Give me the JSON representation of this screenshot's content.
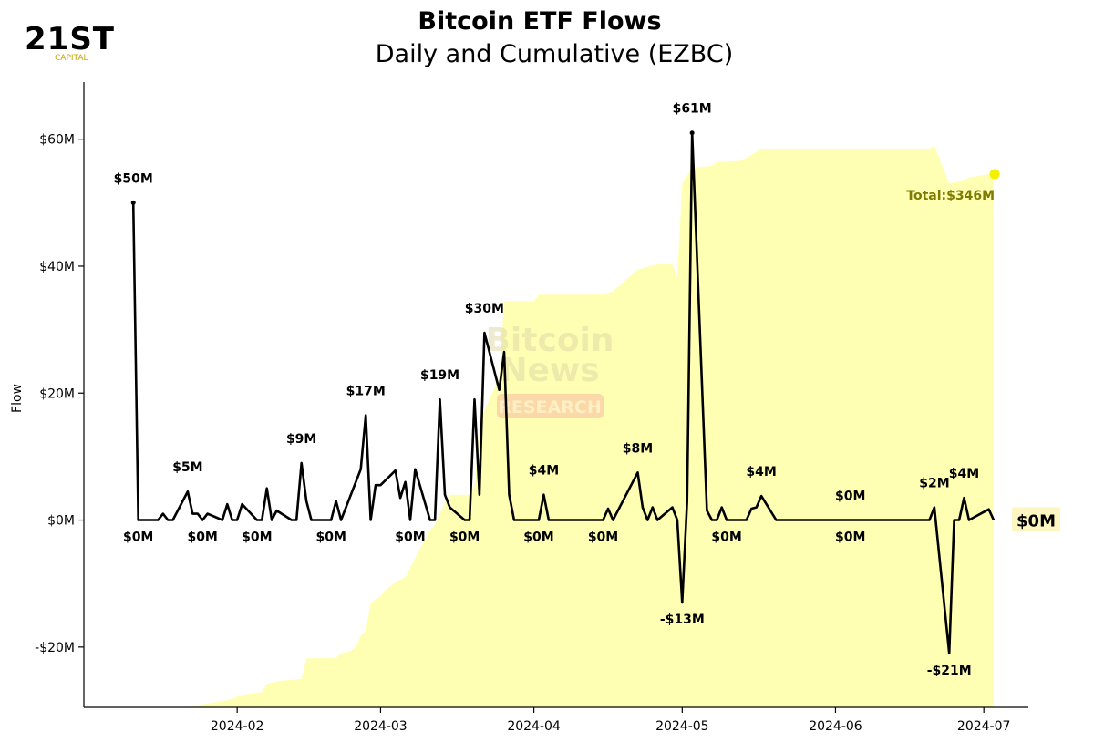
{
  "logo": {
    "main": "21ST",
    "sub": "CAPITAL"
  },
  "watermark": {
    "line1": "Bitcoin",
    "line2": "News",
    "line3": "RESEARCH"
  },
  "colors": {
    "line": "#000000",
    "area": "#ffffb3",
    "total_dot": "#f5ef00",
    "total_text": "#7f7a00",
    "last_badge": "#fdf6c0",
    "grid_zero": "#bbbbbb"
  },
  "chart_data": {
    "type": "line",
    "title": "Bitcoin ETF Flows",
    "subtitle": "Daily and Cumulative (EZBC)",
    "ylabel": "Flow",
    "xlabel": "",
    "ylim": [
      -29.5,
      69
    ],
    "yticks": [
      {
        "value": -20,
        "label": "-$20M"
      },
      {
        "value": 0,
        "label": "$0M"
      },
      {
        "value": 20,
        "label": "$20M"
      },
      {
        "value": 40,
        "label": "$40M"
      },
      {
        "value": 60,
        "label": "$60M"
      }
    ],
    "xlim": [
      "2024-01-01",
      "2024-07-10"
    ],
    "xticks": [
      "2024-02",
      "2024-03",
      "2024-04",
      "2024-05",
      "2024-06",
      "2024-07"
    ],
    "daily_flow_series": {
      "name": "Daily flow ($M)",
      "points": [
        [
          "2024-01-11",
          50
        ],
        [
          "2024-01-12",
          0
        ],
        [
          "2024-01-16",
          0
        ],
        [
          "2024-01-17",
          1
        ],
        [
          "2024-01-18",
          0
        ],
        [
          "2024-01-19",
          0
        ],
        [
          "2024-01-22",
          4.5
        ],
        [
          "2024-01-23",
          1
        ],
        [
          "2024-01-24",
          1
        ],
        [
          "2024-01-25",
          0
        ],
        [
          "2024-01-26",
          1
        ],
        [
          "2024-01-29",
          0
        ],
        [
          "2024-01-30",
          2.5
        ],
        [
          "2024-01-31",
          0
        ],
        [
          "2024-02-01",
          0
        ],
        [
          "2024-02-02",
          2.5
        ],
        [
          "2024-02-05",
          0
        ],
        [
          "2024-02-06",
          0
        ],
        [
          "2024-02-07",
          5
        ],
        [
          "2024-02-08",
          0
        ],
        [
          "2024-02-09",
          1.5
        ],
        [
          "2024-02-12",
          0
        ],
        [
          "2024-02-13",
          0
        ],
        [
          "2024-02-14",
          9
        ],
        [
          "2024-02-15",
          3
        ],
        [
          "2024-02-16",
          0
        ],
        [
          "2024-02-20",
          0
        ],
        [
          "2024-02-21",
          3
        ],
        [
          "2024-02-22",
          0
        ],
        [
          "2024-02-26",
          8
        ],
        [
          "2024-02-27",
          16.5
        ],
        [
          "2024-02-28",
          0
        ],
        [
          "2024-02-29",
          5.5
        ],
        [
          "2024-03-01",
          5.5
        ],
        [
          "2024-03-04",
          7.8
        ],
        [
          "2024-03-05",
          3.5
        ],
        [
          "2024-03-06",
          6
        ],
        [
          "2024-03-07",
          0
        ],
        [
          "2024-03-08",
          8
        ],
        [
          "2024-03-11",
          0
        ],
        [
          "2024-03-12",
          0
        ],
        [
          "2024-03-13",
          19
        ],
        [
          "2024-03-14",
          4
        ],
        [
          "2024-03-15",
          2
        ],
        [
          "2024-03-18",
          0
        ],
        [
          "2024-03-19",
          0
        ],
        [
          "2024-03-20",
          19
        ],
        [
          "2024-03-21",
          4
        ],
        [
          "2024-03-22",
          29.5
        ],
        [
          "2024-03-25",
          20.5
        ],
        [
          "2024-03-26",
          26.5
        ],
        [
          "2024-03-27",
          4
        ],
        [
          "2024-03-28",
          0
        ],
        [
          "2024-04-01",
          0
        ],
        [
          "2024-04-02",
          0
        ],
        [
          "2024-04-03",
          4
        ],
        [
          "2024-04-04",
          0
        ],
        [
          "2024-04-15",
          0
        ],
        [
          "2024-04-16",
          1.8
        ],
        [
          "2024-04-17",
          0
        ],
        [
          "2024-04-22",
          7.5
        ],
        [
          "2024-04-23",
          2
        ],
        [
          "2024-04-24",
          0
        ],
        [
          "2024-04-25",
          2
        ],
        [
          "2024-04-26",
          0
        ],
        [
          "2024-04-29",
          2
        ],
        [
          "2024-04-30",
          0
        ],
        [
          "2024-05-01",
          -13
        ],
        [
          "2024-05-02",
          3
        ],
        [
          "2024-05-03",
          61
        ],
        [
          "2024-05-06",
          1.5
        ],
        [
          "2024-05-07",
          0
        ],
        [
          "2024-05-08",
          0
        ],
        [
          "2024-05-09",
          2
        ],
        [
          "2024-05-10",
          0
        ],
        [
          "2024-05-13",
          0
        ],
        [
          "2024-05-14",
          0
        ],
        [
          "2024-05-15",
          1.8
        ],
        [
          "2024-05-16",
          2
        ],
        [
          "2024-05-17",
          3.8
        ],
        [
          "2024-05-20",
          0
        ],
        [
          "2024-06-20",
          0
        ],
        [
          "2024-06-21",
          2
        ],
        [
          "2024-06-24",
          -21
        ],
        [
          "2024-06-25",
          0
        ],
        [
          "2024-06-26",
          0
        ],
        [
          "2024-06-27",
          3.5
        ],
        [
          "2024-06-28",
          0
        ],
        [
          "2024-07-02",
          1.7
        ],
        [
          "2024-07-03",
          0
        ]
      ]
    },
    "cumulative_series": {
      "name": "Cumulative flow",
      "total_label": "Total:$346M",
      "points": [
        [
          "2024-01-11",
          -50
        ],
        [
          "2024-01-22",
          -29.5
        ],
        [
          "2024-01-25",
          -29
        ],
        [
          "2024-01-29",
          -28.5
        ],
        [
          "2024-01-31",
          -28.2
        ],
        [
          "2024-02-02",
          -27.5
        ],
        [
          "2024-02-06",
          -27.1
        ],
        [
          "2024-02-07",
          -25.8
        ],
        [
          "2024-02-09",
          -25.4
        ],
        [
          "2024-02-14",
          -25
        ],
        [
          "2024-02-15",
          -21.8
        ],
        [
          "2024-02-21",
          -21.7
        ],
        [
          "2024-02-22",
          -21
        ],
        [
          "2024-02-24",
          -20.6
        ],
        [
          "2024-02-25",
          -20
        ],
        [
          "2024-02-26",
          -18.2
        ],
        [
          "2024-02-27",
          -17.5
        ],
        [
          "2024-02-28",
          -13
        ],
        [
          "2024-03-01",
          -12
        ],
        [
          "2024-03-02",
          -11
        ],
        [
          "2024-03-04",
          -9.8
        ],
        [
          "2024-03-06",
          -9
        ],
        [
          "2024-03-07",
          -7.5
        ],
        [
          "2024-03-11",
          -1.5
        ],
        [
          "2024-03-12",
          -0.8
        ],
        [
          "2024-03-13",
          1
        ],
        [
          "2024-03-14",
          2.8
        ],
        [
          "2024-03-15",
          4
        ],
        [
          "2024-03-19",
          4
        ],
        [
          "2024-03-20",
          5.5
        ],
        [
          "2024-03-21",
          15.5
        ],
        [
          "2024-03-25",
          22.5
        ],
        [
          "2024-03-26",
          34.5
        ],
        [
          "2024-04-01",
          34.5
        ],
        [
          "2024-04-02",
          35.5
        ],
        [
          "2024-04-15",
          35.5
        ],
        [
          "2024-04-17",
          36
        ],
        [
          "2024-04-22",
          39.5
        ],
        [
          "2024-04-26",
          40.3
        ],
        [
          "2024-04-29",
          40.3
        ],
        [
          "2024-04-30",
          38.2
        ],
        [
          "2024-05-01",
          53
        ],
        [
          "2024-05-03",
          55.5
        ],
        [
          "2024-05-07",
          55.8
        ],
        [
          "2024-05-08",
          56.4
        ],
        [
          "2024-05-13",
          56.6
        ],
        [
          "2024-05-17",
          58.5
        ],
        [
          "2024-06-20",
          58.5
        ],
        [
          "2024-06-21",
          59
        ],
        [
          "2024-06-24",
          53
        ],
        [
          "2024-06-27",
          53.5
        ],
        [
          "2024-06-28",
          54
        ],
        [
          "2024-07-02",
          54.5
        ],
        [
          "2024-07-03",
          54.5
        ]
      ]
    },
    "point_labels": [
      {
        "date": "2024-01-11",
        "value": 50,
        "text": "$50M",
        "pos": "above"
      },
      {
        "date": "2024-01-22",
        "value": 4.5,
        "text": "$5M",
        "pos": "above"
      },
      {
        "date": "2024-02-14",
        "value": 9,
        "text": "$9M",
        "pos": "above"
      },
      {
        "date": "2024-02-27",
        "value": 16.5,
        "text": "$17M",
        "pos": "above"
      },
      {
        "date": "2024-03-13",
        "value": 19,
        "text": "$19M",
        "pos": "above"
      },
      {
        "date": "2024-03-22",
        "value": 29.5,
        "text": "$30M",
        "pos": "above"
      },
      {
        "date": "2024-04-03",
        "value": 4,
        "text": "$4M",
        "pos": "above"
      },
      {
        "date": "2024-04-22",
        "value": 7.5,
        "text": "$8M",
        "pos": "above"
      },
      {
        "date": "2024-05-03",
        "value": 61,
        "text": "$61M",
        "pos": "above"
      },
      {
        "date": "2024-05-17",
        "value": 3.8,
        "text": "$4M",
        "pos": "above"
      },
      {
        "date": "2024-06-04",
        "value": 0,
        "text": "$0M",
        "pos": "above"
      },
      {
        "date": "2024-06-21",
        "value": 2,
        "text": "$2M",
        "pos": "above"
      },
      {
        "date": "2024-06-27",
        "value": 3.5,
        "text": "$4M",
        "pos": "above"
      },
      {
        "date": "2024-05-01",
        "value": -13,
        "text": "-$13M",
        "pos": "below"
      },
      {
        "date": "2024-06-24",
        "value": -21,
        "text": "-$21M",
        "pos": "below"
      },
      {
        "date": "2024-01-12",
        "value": 0,
        "text": "$0M",
        "pos": "below"
      },
      {
        "date": "2024-01-25",
        "value": 0,
        "text": "$0M",
        "pos": "below"
      },
      {
        "date": "2024-02-05",
        "value": 0,
        "text": "$0M",
        "pos": "below"
      },
      {
        "date": "2024-02-20",
        "value": 0,
        "text": "$0M",
        "pos": "below"
      },
      {
        "date": "2024-03-07",
        "value": 0,
        "text": "$0M",
        "pos": "below"
      },
      {
        "date": "2024-03-18",
        "value": 0,
        "text": "$0M",
        "pos": "below"
      },
      {
        "date": "2024-04-02",
        "value": 0,
        "text": "$0M",
        "pos": "below"
      },
      {
        "date": "2024-04-15",
        "value": 0,
        "text": "$0M",
        "pos": "below"
      },
      {
        "date": "2024-05-10",
        "value": 0,
        "text": "$0M",
        "pos": "below"
      },
      {
        "date": "2024-06-04",
        "value": 0,
        "text": "$0M",
        "pos": "below"
      }
    ],
    "last_value_label": "$0M",
    "grid": false
  }
}
